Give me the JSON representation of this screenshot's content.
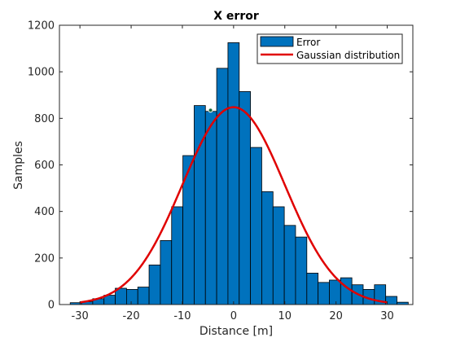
{
  "chart_data": {
    "type": "bar",
    "title": "X error",
    "xlabel": "Distance [m]",
    "ylabel": "Samples",
    "xlim": [
      -34,
      35
    ],
    "ylim": [
      0,
      1200
    ],
    "xticks": [
      -30,
      -20,
      -10,
      0,
      10,
      20,
      30
    ],
    "yticks": [
      0,
      200,
      400,
      600,
      800,
      1000,
      1200
    ],
    "grid": false,
    "legend_position": "top-right",
    "colors": {
      "bar_fill": "#0072BD",
      "bar_edge": "#000000",
      "curve": "#E00000",
      "axis": "#262626"
    },
    "series": [
      {
        "name": "Error",
        "kind": "histogram",
        "bin_width": 2.2,
        "bin_centers": [
          -30.8,
          -28.6,
          -26.4,
          -24.2,
          -22.0,
          -19.8,
          -17.6,
          -15.4,
          -13.2,
          -11.0,
          -8.8,
          -6.6,
          -4.4,
          -2.2,
          0.0,
          2.2,
          4.4,
          6.6,
          8.8,
          11.0,
          13.2,
          15.4,
          17.6,
          19.8,
          22.0,
          24.2,
          26.4,
          28.6,
          30.8,
          33.0
        ],
        "values": [
          8,
          12,
          25,
          40,
          70,
          65,
          75,
          170,
          275,
          420,
          640,
          855,
          830,
          1015,
          1125,
          915,
          675,
          485,
          420,
          340,
          290,
          135,
          95,
          105,
          115,
          85,
          65,
          85,
          35,
          10
        ]
      },
      {
        "name": "Gaussian distribution",
        "kind": "line",
        "mean": 0.0,
        "sigma": 10.0,
        "peak": 848,
        "x_range": [
          -30,
          30
        ]
      }
    ],
    "annotations": [
      {
        "kind": "marker",
        "x": -4.5,
        "y": 835
      }
    ]
  }
}
